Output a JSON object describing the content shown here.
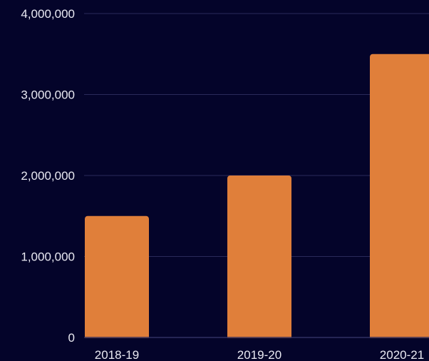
{
  "chart_data": {
    "type": "bar",
    "categories": [
      "2018-19",
      "2019-20",
      "2020-21"
    ],
    "values": [
      1500000,
      2000000,
      3500000
    ],
    "title": "",
    "xlabel": "",
    "ylabel": "",
    "ylim": [
      0,
      4000000
    ],
    "yticks": [
      0,
      1000000,
      2000000,
      3000000,
      4000000
    ],
    "ytick_labels": [
      "0",
      "1,000,000",
      "2,000,000",
      "3,000,000",
      "4,000,000"
    ],
    "grid": true,
    "legend": "none"
  },
  "colors": {
    "background": "#04042a",
    "bar": "#e07f3a",
    "grid": "#2a2a5a",
    "text": "#e9e9f2"
  }
}
